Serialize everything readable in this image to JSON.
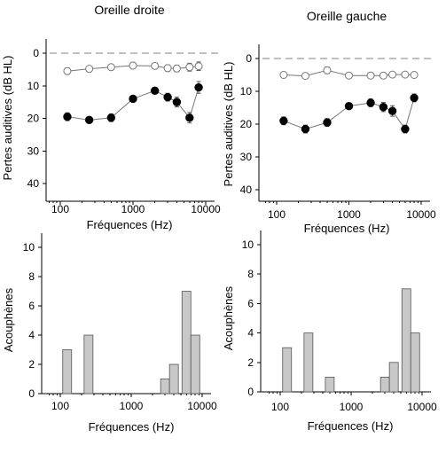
{
  "chart_data": [
    {
      "type": "line",
      "title": "Oreille droite",
      "xlabel": "Fréquences (Hz)",
      "ylabel": "Pertes auditives (dB HL)",
      "xscale": "log",
      "xlim": [
        70,
        10000
      ],
      "ylim": [
        0,
        40
      ],
      "y_inverted": true,
      "xticks": [
        100,
        1000,
        10000
      ],
      "xtick_labels": [
        "100",
        "1000",
        "10000"
      ],
      "yticks": [
        0,
        10,
        20,
        30,
        40
      ],
      "ytick_labels": [
        "0",
        "10",
        "20",
        "30",
        "40"
      ],
      "reference_line": 0,
      "series": [
        {
          "marker": "open-circle",
          "x": [
            125,
            250,
            500,
            1000,
            2000,
            3000,
            4000,
            6000,
            8000
          ],
          "values": [
            5.5,
            4.8,
            4.3,
            3.8,
            3.9,
            4.6,
            4.7,
            4.3,
            4.0
          ],
          "errors": [
            1.0,
            0.8,
            0.8,
            1.0,
            0.9,
            1.0,
            1.0,
            1.2,
            1.3
          ]
        },
        {
          "marker": "filled-circle",
          "x": [
            125,
            250,
            500,
            1000,
            2000,
            3000,
            4000,
            6000,
            8000
          ],
          "values": [
            19.5,
            20.5,
            19.8,
            14.0,
            11.5,
            13.5,
            15.0,
            19.8,
            10.5
          ],
          "errors": [
            1.2,
            1.0,
            1.2,
            0.9,
            1.0,
            1.2,
            1.5,
            1.6,
            1.8
          ]
        }
      ]
    },
    {
      "type": "line",
      "title": "Oreille gauche",
      "xlabel": "Fréquences (Hz)",
      "ylabel": "Pertes auditives (dB HL)",
      "xscale": "log",
      "xlim": [
        70,
        10000
      ],
      "ylim": [
        0,
        40
      ],
      "y_inverted": true,
      "xticks": [
        100,
        1000,
        10000
      ],
      "xtick_labels": [
        "100",
        "1000",
        "10000"
      ],
      "yticks": [
        0,
        10,
        20,
        30,
        40
      ],
      "ytick_labels": [
        "0",
        "10",
        "20",
        "30",
        "40"
      ],
      "reference_line": 0,
      "series": [
        {
          "marker": "open-circle",
          "x": [
            125,
            250,
            500,
            1000,
            2000,
            3000,
            4000,
            6000,
            8000
          ],
          "values": [
            5.0,
            5.3,
            3.6,
            5.2,
            5.2,
            5.2,
            4.9,
            4.9,
            5.0
          ],
          "errors": [
            0.9,
            0.8,
            1.0,
            0.8,
            0.8,
            0.8,
            0.8,
            0.8,
            0.8
          ]
        },
        {
          "marker": "filled-circle",
          "x": [
            125,
            250,
            500,
            1000,
            2000,
            3000,
            4000,
            6000,
            8000
          ],
          "values": [
            19.0,
            21.5,
            19.5,
            14.5,
            13.5,
            14.8,
            16.0,
            21.5,
            12.0
          ],
          "errors": [
            1.2,
            1.2,
            1.2,
            0.8,
            1.2,
            1.4,
            1.6,
            1.2,
            1.2
          ]
        }
      ]
    },
    {
      "type": "bar",
      "xlabel": "Fréquences (Hz)",
      "ylabel": "Acouphènes",
      "xscale": "log",
      "xlim": [
        70,
        10000
      ],
      "ylim": [
        0,
        10
      ],
      "xticks": [
        100,
        1000,
        10000
      ],
      "xtick_labels": [
        "100",
        "1000",
        "10000"
      ],
      "yticks": [
        0,
        2,
        4,
        6,
        8,
        10
      ],
      "ytick_labels": [
        "0",
        "2",
        "4",
        "6",
        "8",
        "10"
      ],
      "x": [
        125,
        250,
        3000,
        4000,
        6000,
        8000
      ],
      "values": [
        3,
        4,
        1,
        2,
        7,
        4
      ]
    },
    {
      "type": "bar",
      "xlabel": "Fréquences (Hz)",
      "ylabel": "Acouphènes",
      "xscale": "log",
      "xlim": [
        70,
        10000
      ],
      "ylim": [
        0,
        10
      ],
      "xticks": [
        100,
        1000,
        10000
      ],
      "xtick_labels": [
        "100",
        "1000",
        "10000"
      ],
      "yticks": [
        0,
        2,
        4,
        6,
        8,
        10
      ],
      "ytick_labels": [
        "0",
        "2",
        "4",
        "6",
        "8",
        "10"
      ],
      "x": [
        125,
        250,
        500,
        3000,
        4000,
        6000,
        8000
      ],
      "values": [
        3,
        4,
        1,
        1,
        2,
        7,
        4
      ]
    }
  ]
}
